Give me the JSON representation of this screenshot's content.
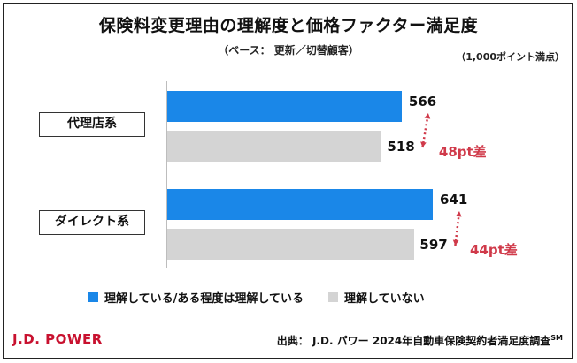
{
  "chart_data": {
    "type": "bar",
    "orientation": "horizontal",
    "title": "保険料変更理由の理解度と価格ファクター満足度",
    "subtitle": "（ベース： 更新／切替顧客）",
    "unit_note": "（1,000ポイント満点）",
    "categories": [
      "代理店系",
      "ダイレクト系"
    ],
    "series": [
      {
        "name": "理解している/ある程度は理解している",
        "values": [
          566,
          641
        ],
        "color": "#1a87e8"
      },
      {
        "name": "理解していない",
        "values": [
          518,
          597
        ],
        "color": "#d4d4d4"
      }
    ],
    "differences": [
      "48pt差",
      "44pt差"
    ],
    "legend_position": "bottom",
    "grid": false
  },
  "footer": {
    "logo": "J.D. POWER",
    "source_text": "出典： J.D. パワー 2024年自動車保険契約者満足度調査",
    "source_sup": "SM"
  }
}
